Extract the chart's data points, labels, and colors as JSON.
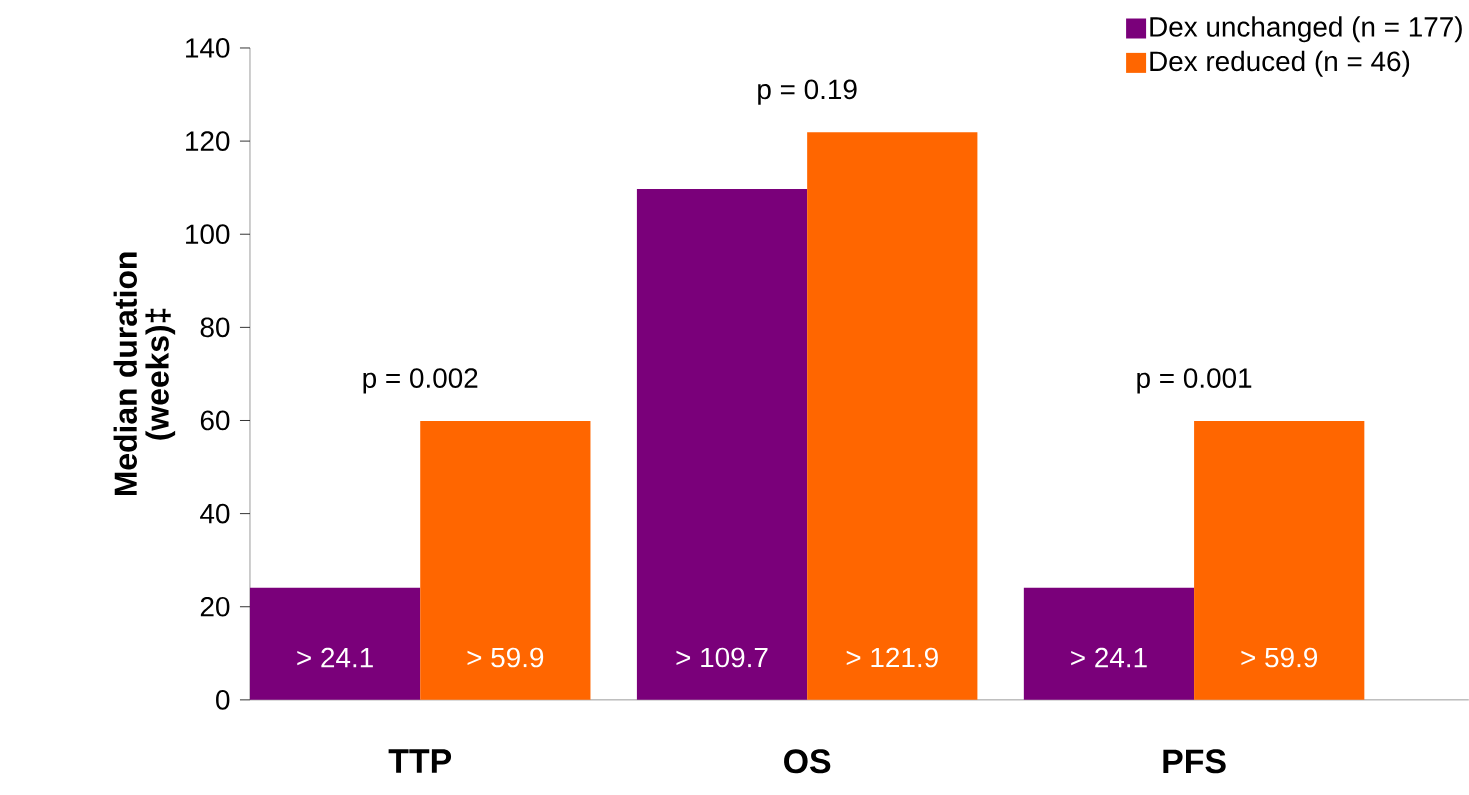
{
  "chart_data": {
    "type": "bar",
    "ylabel": "Median duration (weeks)‡",
    "categories": [
      "TTP",
      "OS",
      "PFS"
    ],
    "series": [
      {
        "name": "Dex unchanged (n = 177)",
        "color": "#7a007a",
        "values": [
          24.1,
          109.7,
          24.1
        ],
        "value_labels": [
          "> 24.1",
          "> 109.7",
          "> 24.1"
        ]
      },
      {
        "name": "Dex reduced (n = 46)",
        "color": "#ff6600",
        "values": [
          59.9,
          121.9,
          59.9
        ],
        "value_labels": [
          "> 59.9",
          "> 121.9",
          "> 59.9"
        ]
      }
    ],
    "annotations": [
      "p = 0.002",
      "p = 0.19",
      "p = 0.001"
    ],
    "ylim": [
      0,
      140
    ],
    "yticks": [
      0,
      20,
      40,
      60,
      80,
      100,
      120,
      140
    ],
    "legend": "top right",
    "grid": false
  }
}
